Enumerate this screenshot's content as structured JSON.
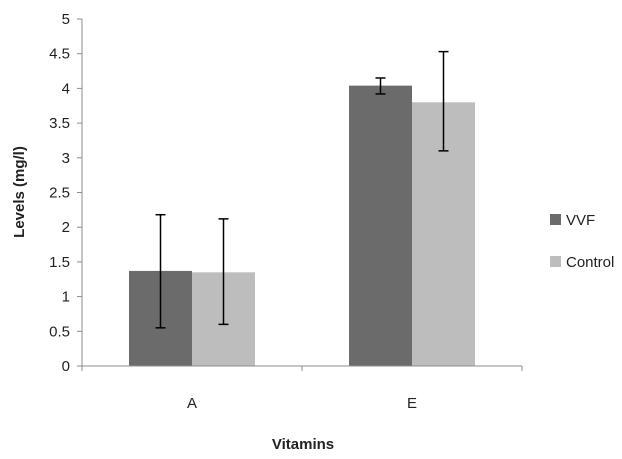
{
  "chart_data": {
    "type": "bar",
    "title": "",
    "xlabel": "Vitamins",
    "ylabel": "Levels (mg/l)",
    "categories": [
      "A",
      "E"
    ],
    "ylim": [
      0,
      5
    ],
    "yticks": [
      0,
      0.5,
      1,
      1.5,
      2,
      2.5,
      3,
      3.5,
      4,
      4.5,
      5
    ],
    "ytick_labels": [
      "0",
      "0.5",
      "1",
      "1.5",
      "2",
      "2.5",
      "3",
      "3.5",
      "4",
      "4.5",
      "5"
    ],
    "grid": false,
    "legend_position": "right",
    "series": [
      {
        "name": "VVF",
        "color": "#6b6b6b",
        "values": [
          1.37,
          4.04
        ],
        "error_low": [
          0.55,
          3.92
        ],
        "error_high": [
          2.18,
          4.15
        ]
      },
      {
        "name": "Control",
        "color": "#bdbdbd",
        "values": [
          1.35,
          3.8
        ],
        "error_low": [
          0.6,
          3.1
        ],
        "error_high": [
          2.12,
          4.53
        ]
      }
    ]
  }
}
